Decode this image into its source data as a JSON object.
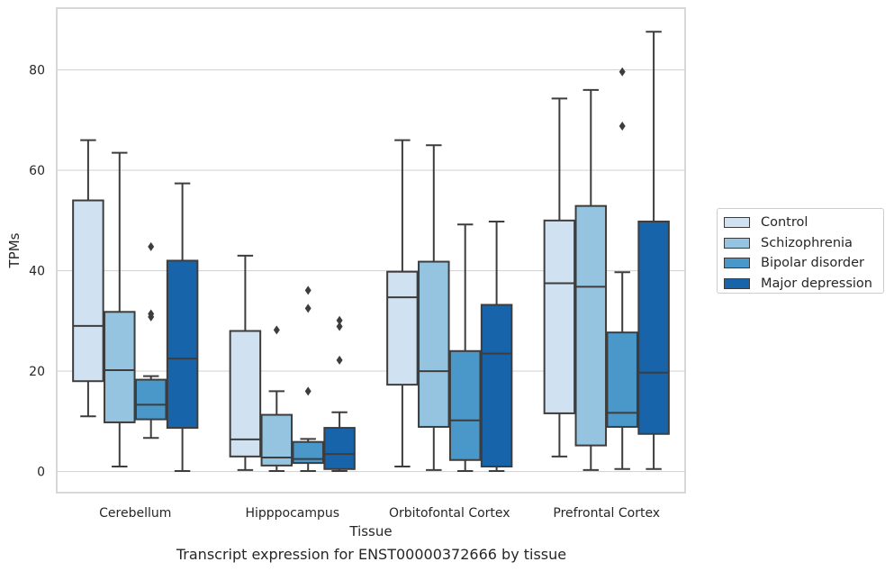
{
  "chart_data": {
    "type": "box",
    "title": "Transcript expression for ENST00000372666 by tissue",
    "xlabel": "Tissue",
    "ylabel": "TPMs",
    "ylim": [
      -4.2,
      92.3
    ],
    "yticks": [
      0,
      20,
      40,
      60,
      80
    ],
    "grid": "horizontal",
    "legend_position": "center-right, outside plot",
    "categories": [
      "Cerebellum",
      "Hipppocampus",
      "Orbitofontal Cortex",
      "Prefrontal Cortex"
    ],
    "series": [
      {
        "name": "Control",
        "color": "#d0e1f2",
        "boxes": [
          {
            "whislo": 11,
            "q1": 18,
            "med": 29,
            "q3": 54,
            "whishi": 66,
            "fliers": []
          },
          {
            "whislo": 0.3,
            "q1": 3,
            "med": 6.4,
            "q3": 28,
            "whishi": 43,
            "fliers": []
          },
          {
            "whislo": 1,
            "q1": 17.3,
            "med": 34.7,
            "q3": 39.8,
            "whishi": 66,
            "fliers": []
          },
          {
            "whislo": 3,
            "q1": 11.6,
            "med": 37.5,
            "q3": 50,
            "whishi": 74.3,
            "fliers": []
          }
        ]
      },
      {
        "name": "Schizophrenia",
        "color": "#94c4df",
        "boxes": [
          {
            "whislo": 1,
            "q1": 9.8,
            "med": 20.2,
            "q3": 31.8,
            "whishi": 63.5,
            "fliers": []
          },
          {
            "whislo": 0.1,
            "q1": 1.2,
            "med": 2.8,
            "q3": 11.3,
            "whishi": 16,
            "fliers": [
              28.2
            ]
          },
          {
            "whislo": 0.3,
            "q1": 8.9,
            "med": 20,
            "q3": 41.8,
            "whishi": 65,
            "fliers": []
          },
          {
            "whislo": 0.3,
            "q1": 5.2,
            "med": 36.8,
            "q3": 52.9,
            "whishi": 76,
            "fliers": []
          }
        ]
      },
      {
        "name": "Bipolar disorder",
        "color": "#4a98c9",
        "boxes": [
          {
            "whislo": 6.7,
            "q1": 10.4,
            "med": 13.3,
            "q3": 18.3,
            "whishi": 19,
            "fliers": [
              30.8,
              31.4,
              44.8
            ]
          },
          {
            "whislo": 0.1,
            "q1": 1.7,
            "med": 2.5,
            "q3": 5.9,
            "whishi": 6.5,
            "fliers": [
              16,
              32.5,
              36.1
            ]
          },
          {
            "whislo": 0.1,
            "q1": 2.3,
            "med": 10.2,
            "q3": 24,
            "whishi": 49.2,
            "fliers": []
          },
          {
            "whislo": 0.5,
            "q1": 8.9,
            "med": 11.7,
            "q3": 27.7,
            "whishi": 39.7,
            "fliers": [
              68.8,
              79.6
            ]
          }
        ]
      },
      {
        "name": "Major depression",
        "color": "#1764ab",
        "boxes": [
          {
            "whislo": 0.1,
            "q1": 8.7,
            "med": 22.5,
            "q3": 42,
            "whishi": 57.4,
            "fliers": []
          },
          {
            "whislo": 0.1,
            "q1": 0.5,
            "med": 3.5,
            "q3": 8.7,
            "whishi": 11.8,
            "fliers": [
              22.2,
              28.9,
              30.1
            ]
          },
          {
            "whislo": 0.1,
            "q1": 1,
            "med": 23.5,
            "q3": 33.2,
            "whishi": 49.8,
            "fliers": []
          },
          {
            "whislo": 0.5,
            "q1": 7.5,
            "med": 19.7,
            "q3": 49.8,
            "whishi": 87.6,
            "fliers": []
          }
        ]
      }
    ]
  }
}
